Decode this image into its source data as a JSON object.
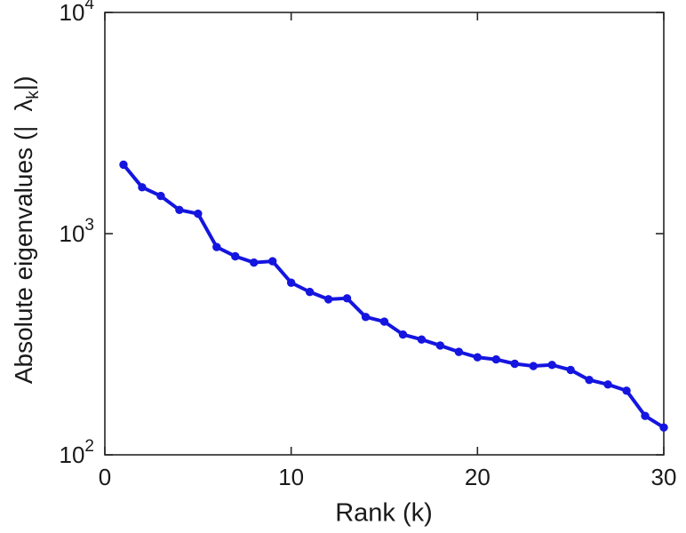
{
  "figure": {
    "background": "#ffffff"
  },
  "chart_data": {
    "type": "line",
    "title": "",
    "xlabel": "Rank (k)",
    "ylabel": {
      "prefix": "Absolute eigenvalues (|",
      "symbol": "λ",
      "subscript": "k",
      "suffix": "|)"
    },
    "yscale": "log",
    "grid": false,
    "legend": null,
    "xlim": [
      0,
      30
    ],
    "ylim": [
      100,
      10000
    ],
    "x_ticks": [
      0,
      10,
      20,
      30
    ],
    "y_ticks": [
      {
        "value": 100,
        "base": "10",
        "exponent": "2"
      },
      {
        "value": 1000,
        "base": "10",
        "exponent": "3"
      },
      {
        "value": 10000,
        "base": "10",
        "exponent": "4"
      }
    ],
    "axis_color": "#262626",
    "text_color": "#1a1a1a",
    "series": [
      {
        "name": "absolute-eigenvalues",
        "color": "#1515e0",
        "marker": "circle",
        "x": [
          1,
          2,
          3,
          4,
          5,
          6,
          7,
          8,
          9,
          10,
          11,
          12,
          13,
          14,
          15,
          16,
          17,
          18,
          19,
          20,
          21,
          22,
          23,
          24,
          25,
          26,
          27,
          28,
          29,
          30
        ],
        "y": [
          2050,
          1620,
          1480,
          1280,
          1230,
          870,
          790,
          740,
          750,
          600,
          545,
          505,
          510,
          420,
          400,
          350,
          332,
          312,
          292,
          276,
          270,
          258,
          252,
          255,
          242,
          218,
          208,
          195,
          150,
          133
        ]
      }
    ]
  }
}
